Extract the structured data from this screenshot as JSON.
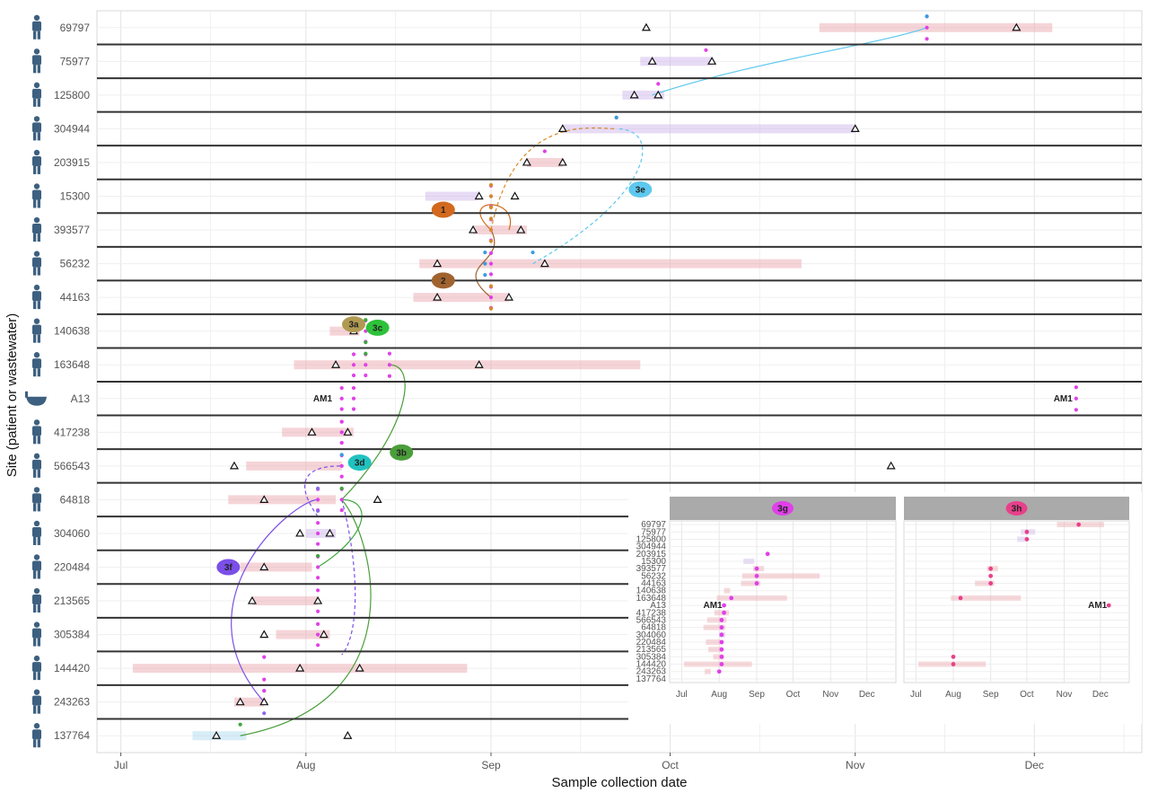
{
  "chart_data": [
    {
      "type": "timeline",
      "xlabel": "Sample collection date",
      "ylabel": "Site (patient or wastewater)",
      "x_ticks": [
        "Jul",
        "Aug",
        "Sep",
        "Oct",
        "Nov",
        "Dec"
      ],
      "x_range": [
        "2024-06-27",
        "2024-12-19"
      ],
      "sites": [
        {
          "name": "69797",
          "kind": "patient",
          "color": "#e8a0a8",
          "stay": [
            "2024-10-26",
            "2024-12-04"
          ],
          "markers": [
            "2024-09-27",
            "2024-11-28"
          ]
        },
        {
          "name": "75977",
          "kind": "patient",
          "color": "#c9b0e8",
          "stay": [
            "2024-09-26",
            "2024-10-08"
          ],
          "markers": [
            "2024-09-28",
            "2024-10-08"
          ]
        },
        {
          "name": "125800",
          "kind": "patient",
          "color": "#c9b0e8",
          "stay": [
            "2024-09-23",
            "2024-09-30"
          ],
          "markers": [
            "2024-09-25",
            "2024-09-29"
          ]
        },
        {
          "name": "304944",
          "kind": "patient",
          "color": "#c9b0e8",
          "stay": [
            "2024-09-13",
            "2024-11-01"
          ],
          "markers": [
            "2024-09-13",
            "2024-11-01"
          ]
        },
        {
          "name": "203915",
          "kind": "patient",
          "color": "#e8a0a8",
          "stay": [
            "2024-09-07",
            "2024-09-13"
          ],
          "markers": [
            "2024-09-07",
            "2024-09-13"
          ]
        },
        {
          "name": "15300",
          "kind": "patient",
          "color": "#c9b0e8",
          "stay": [
            "2024-08-21",
            "2024-08-30"
          ],
          "markers": [
            "2024-08-30",
            "2024-09-05"
          ]
        },
        {
          "name": "393577",
          "kind": "patient",
          "color": "#e8a0a8",
          "stay": [
            "2024-08-29",
            "2024-09-07"
          ],
          "markers": [
            "2024-08-29",
            "2024-09-06"
          ]
        },
        {
          "name": "56232",
          "kind": "patient",
          "color": "#e8a0a8",
          "stay": [
            "2024-08-20",
            "2024-10-23"
          ],
          "markers": [
            "2024-08-23",
            "2024-09-10"
          ]
        },
        {
          "name": "44163",
          "kind": "patient",
          "color": "#e8a0a8",
          "stay": [
            "2024-08-19",
            "2024-09-04"
          ],
          "markers": [
            "2024-08-23",
            "2024-09-04"
          ]
        },
        {
          "name": "140638",
          "kind": "patient",
          "color": "#e8a0a8",
          "stay": [
            "2024-08-05",
            "2024-08-10"
          ],
          "markers": [
            "2024-08-09"
          ]
        },
        {
          "name": "163648",
          "kind": "patient",
          "color": "#e8a0a8",
          "stay": [
            "2024-07-30",
            "2024-09-26"
          ],
          "markers": [
            "2024-08-06",
            "2024-08-30"
          ]
        },
        {
          "name": "A13",
          "kind": "wastewater",
          "color": "#e8a0a8",
          "stay": [],
          "markers": [],
          "labels": [
            {
              "text": "AM1",
              "date": "2024-08-06"
            },
            {
              "text": "AM1",
              "date": "2024-12-08"
            }
          ]
        },
        {
          "name": "417238",
          "kind": "patient",
          "color": "#e8a0a8",
          "stay": [
            "2024-07-28",
            "2024-08-09"
          ],
          "markers": [
            "2024-08-02",
            "2024-08-08"
          ]
        },
        {
          "name": "566543",
          "kind": "patient",
          "color": "#e8a0a8",
          "stay": [
            "2024-07-22",
            "2024-08-07"
          ],
          "markers": [
            "2024-07-20",
            "2024-11-07"
          ]
        },
        {
          "name": "64818",
          "kind": "patient",
          "color": "#e8a0a8",
          "stay": [
            "2024-07-19",
            "2024-08-06"
          ],
          "markers": [
            "2024-07-25",
            "2024-08-13"
          ]
        },
        {
          "name": "304060",
          "kind": "patient",
          "color": "#c9b0e8",
          "stay": [
            "2024-08-01",
            "2024-08-06"
          ],
          "markers": [
            "2024-07-31",
            "2024-08-05"
          ]
        },
        {
          "name": "220484",
          "kind": "patient",
          "color": "#e8a0a8",
          "stay": [
            "2024-07-21",
            "2024-08-02"
          ],
          "markers": [
            "2024-07-25"
          ]
        },
        {
          "name": "213565",
          "kind": "patient",
          "color": "#e8a0a8",
          "stay": [
            "2024-07-23",
            "2024-08-03"
          ],
          "markers": [
            "2024-07-23",
            "2024-08-03"
          ]
        },
        {
          "name": "305384",
          "kind": "patient",
          "color": "#e8a0a8",
          "stay": [
            "2024-07-27",
            "2024-08-05"
          ],
          "markers": [
            "2024-07-25",
            "2024-08-04"
          ]
        },
        {
          "name": "144420",
          "kind": "patient",
          "color": "#e8a0a8",
          "stay": [
            "2024-07-03",
            "2024-08-28"
          ],
          "markers": [
            "2024-07-31",
            "2024-08-10"
          ]
        },
        {
          "name": "243263",
          "kind": "patient",
          "color": "#e8a0a8",
          "stay": [
            "2024-07-20",
            "2024-07-25"
          ],
          "markers": [
            "2024-07-21",
            "2024-07-25"
          ]
        },
        {
          "name": "137764",
          "kind": "patient",
          "color": "#a9d8ee",
          "stay": [
            "2024-07-13",
            "2024-07-22"
          ],
          "markers": [
            "2024-07-17",
            "2024-08-08"
          ]
        }
      ],
      "events": [
        {
          "id": "1",
          "color": "#d2691e"
        },
        {
          "id": "2",
          "color": "#a0632e"
        },
        {
          "id": "3a",
          "color": "#b09a52"
        },
        {
          "id": "3b",
          "color": "#4a9e3a"
        },
        {
          "id": "3c",
          "color": "#2ec23a"
        },
        {
          "id": "3d",
          "color": "#20c2c0"
        },
        {
          "id": "3e",
          "color": "#5ec8ee"
        },
        {
          "id": "3f",
          "color": "#7b4fe8"
        }
      ],
      "point_colors": {
        "magenta": "#e040e8",
        "orange": "#d78a2a",
        "blue": "#3a9be0",
        "green": "#3aa83a",
        "purple": "#8a6ae8"
      }
    },
    {
      "type": "timeline-inset",
      "panels": [
        {
          "title": "3g",
          "color": "#e040e8"
        },
        {
          "title": "3h",
          "color": "#e8408a"
        }
      ],
      "site_labels": [
        "69797",
        "75977",
        "125800",
        "304944",
        "203915",
        "15300",
        "393577",
        "56232",
        "44163",
        "140638",
        "163648",
        "A13",
        "417238",
        "566543",
        "64818",
        "304060",
        "220484",
        "213565",
        "305384",
        "144420",
        "243263",
        "137764"
      ],
      "x_ticks": [
        "Jul",
        "Aug",
        "Sep",
        "Oct",
        "Nov",
        "Dec"
      ],
      "am1_label": "AM1"
    }
  ]
}
